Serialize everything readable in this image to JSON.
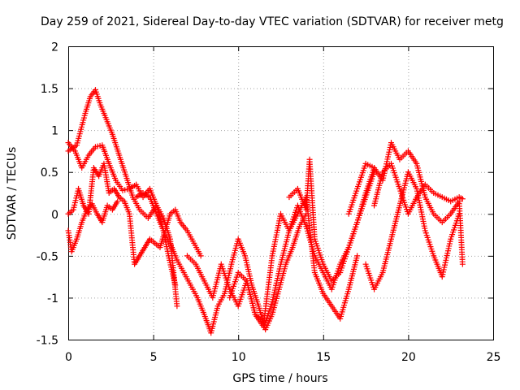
{
  "chart_data": {
    "type": "scatter",
    "title": "Day 259 of 2021, Sidereal Day-to-day VTEC variation (SDTVAR) for receiver metg",
    "xlabel": "GPS time / hours",
    "ylabel": "SDTVAR / TECUs",
    "xlim": [
      0,
      25
    ],
    "ylim": [
      -1.5,
      2
    ],
    "xticks": [
      "0",
      "5",
      "10",
      "15",
      "20",
      "25"
    ],
    "yticks": [
      "-1.5",
      "-1",
      "-0.5",
      "0",
      "0.5",
      "1",
      "1.5",
      "2"
    ],
    "grid": true,
    "marker": "+",
    "color": "#ff0000",
    "series": [
      {
        "name": "trace-1",
        "x": [
          0.0,
          0.5,
          1.0,
          1.3,
          1.6,
          1.9,
          2.2,
          2.6,
          3.0,
          3.4,
          3.8,
          4.2,
          4.7,
          5.2,
          5.6,
          5.9,
          6.3
        ],
        "y": [
          0.75,
          0.82,
          1.2,
          1.4,
          1.48,
          1.3,
          1.15,
          0.95,
          0.7,
          0.45,
          0.2,
          0.05,
          -0.05,
          0.1,
          -0.2,
          -0.5,
          -0.85
        ]
      },
      {
        "name": "trace-2",
        "x": [
          0.0,
          0.4,
          0.8,
          1.2,
          1.6,
          2.0,
          2.4,
          2.8,
          3.2,
          3.6,
          4.0,
          4.4,
          4.8,
          5.2,
          5.6,
          6.0,
          6.4
        ],
        "y": [
          0.85,
          0.75,
          0.55,
          0.7,
          0.8,
          0.82,
          0.6,
          0.4,
          0.28,
          0.3,
          0.35,
          0.2,
          0.3,
          0.1,
          -0.05,
          -0.3,
          -1.1
        ]
      },
      {
        "name": "trace-3",
        "x": [
          0.0,
          0.3,
          0.6,
          0.9,
          1.2,
          1.5,
          1.8,
          2.1,
          2.4,
          2.7,
          3.0,
          3.3,
          3.6,
          3.9,
          4.2,
          4.5,
          4.8,
          5.1,
          5.4,
          5.7,
          6.0,
          6.3,
          6.6,
          7.0,
          7.4,
          7.8
        ],
        "y": [
          0.0,
          0.05,
          0.3,
          0.1,
          0.0,
          0.55,
          0.45,
          0.6,
          0.25,
          0.3,
          0.2,
          0.15,
          0.0,
          -0.6,
          -0.5,
          -0.4,
          -0.3,
          -0.35,
          -0.4,
          -0.2,
          0.0,
          0.05,
          -0.1,
          -0.2,
          -0.35,
          -0.5
        ]
      },
      {
        "name": "trace-4",
        "x": [
          0.0,
          0.2,
          0.5,
          0.8,
          1.1,
          1.4,
          1.7,
          2.0,
          2.3,
          2.6,
          2.9
        ],
        "y": [
          -0.2,
          -0.45,
          -0.3,
          -0.1,
          0.05,
          0.12,
          0.0,
          -0.1,
          0.1,
          0.05,
          0.15
        ]
      },
      {
        "name": "trace-5",
        "x": [
          4.0,
          4.4,
          4.8,
          5.2,
          5.6,
          6.0,
          6.4,
          6.8,
          7.2,
          7.6,
          8.0,
          8.4,
          8.8,
          9.2,
          9.6,
          10.0,
          10.4,
          10.8,
          11.2,
          11.6,
          12.0,
          12.4,
          12.8,
          13.2,
          13.6,
          14.0
        ],
        "y": [
          0.2,
          0.25,
          0.2,
          0.0,
          -0.2,
          -0.35,
          -0.55,
          -0.7,
          -0.85,
          -1.0,
          -1.2,
          -1.42,
          -1.1,
          -0.95,
          -0.6,
          -0.3,
          -0.5,
          -0.85,
          -1.1,
          -1.38,
          -1.2,
          -0.9,
          -0.6,
          -0.4,
          -0.15,
          0.0
        ]
      },
      {
        "name": "trace-6",
        "x": [
          7.0,
          7.5,
          8.0,
          8.5,
          9.0,
          9.5,
          10.0,
          10.5,
          11.0,
          11.5,
          12.0,
          12.5,
          13.0,
          13.5,
          14.0,
          14.5,
          15.0,
          15.5,
          16.0,
          16.5,
          17.0,
          17.5,
          18.0
        ],
        "y": [
          -0.5,
          -0.6,
          -0.8,
          -1.0,
          -0.6,
          -0.9,
          -1.1,
          -0.8,
          -1.2,
          -1.3,
          -0.5,
          0.0,
          -0.2,
          0.1,
          -0.15,
          -0.5,
          -0.7,
          -0.9,
          -0.6,
          -0.4,
          -0.1,
          0.2,
          0.5
        ]
      },
      {
        "name": "trace-7",
        "x": [
          9.5,
          10.0,
          10.5,
          11.0,
          11.5,
          12.0,
          12.5,
          13.0,
          13.5,
          14.0,
          14.5,
          15.0,
          15.5,
          16.0,
          16.5,
          17.0
        ],
        "y": [
          -1.0,
          -0.7,
          -0.8,
          -1.2,
          -1.35,
          -1.05,
          -0.6,
          -0.2,
          0.0,
          0.2,
          -0.7,
          -0.95,
          -1.1,
          -1.25,
          -0.9,
          -0.5
        ]
      },
      {
        "name": "trace-8",
        "x": [
          13.0,
          13.5,
          14.0,
          14.2,
          14.5,
          15.0,
          15.5,
          16.0,
          16.5,
          17.0,
          17.5,
          18.0
        ],
        "y": [
          0.2,
          0.3,
          0.05,
          0.65,
          -0.3,
          -0.6,
          -0.8,
          -0.7,
          -0.4,
          -0.1,
          0.25,
          0.55
        ]
      },
      {
        "name": "trace-9",
        "x": [
          16.5,
          17.0,
          17.5,
          18.0,
          18.5,
          19.0,
          19.5,
          20.0,
          20.5,
          21.0,
          21.5,
          22.0,
          22.5,
          23.0,
          23.2
        ],
        "y": [
          0.0,
          0.3,
          0.6,
          0.55,
          0.4,
          0.85,
          0.65,
          0.75,
          0.6,
          0.2,
          0.0,
          -0.1,
          0.0,
          0.15,
          -0.6
        ]
      },
      {
        "name": "trace-10",
        "x": [
          17.5,
          18.0,
          18.5,
          19.0,
          19.5,
          20.0,
          20.5,
          21.0,
          21.5,
          22.0,
          22.5,
          23.0
        ],
        "y": [
          -0.6,
          -0.9,
          -0.7,
          -0.3,
          0.1,
          0.5,
          0.3,
          -0.2,
          -0.5,
          -0.75,
          -0.3,
          0.0
        ]
      },
      {
        "name": "trace-11",
        "x": [
          18.0,
          18.5,
          19.0,
          19.5,
          20.0,
          20.5,
          21.0,
          21.5,
          22.0,
          22.5,
          23.0,
          23.2
        ],
        "y": [
          0.1,
          0.5,
          0.6,
          0.3,
          0.0,
          0.2,
          0.35,
          0.25,
          0.2,
          0.15,
          0.2,
          0.18
        ]
      }
    ]
  }
}
